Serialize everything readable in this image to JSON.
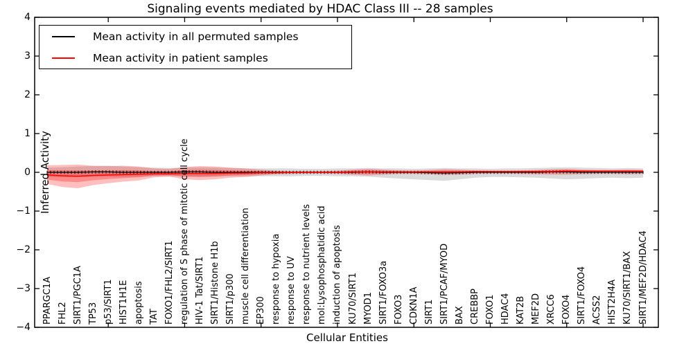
{
  "title": "Signaling events mediated by HDAC Class III -- 28 samples",
  "axes": {
    "xlabel": "Cellular Entities",
    "ylabel": "Inferred Activity",
    "yticks": [
      {
        "value": 4,
        "label": "4"
      },
      {
        "value": 3,
        "label": "3"
      },
      {
        "value": 2,
        "label": "2"
      },
      {
        "value": 1,
        "label": "1"
      },
      {
        "value": 0,
        "label": "0"
      },
      {
        "value": -1,
        "label": "−1"
      },
      {
        "value": -2,
        "label": "−2"
      },
      {
        "value": -3,
        "label": "−3"
      },
      {
        "value": -4,
        "label": "−4"
      }
    ]
  },
  "legend": {
    "items": [
      {
        "label": "Mean activity in all permuted samples",
        "color": "#000000"
      },
      {
        "label": "Mean activity in patient samples",
        "color": "#ff0000"
      }
    ]
  },
  "chart_data": {
    "type": "line",
    "title": "Signaling events mediated by HDAC Class III -- 28 samples",
    "xlabel": "Cellular Entities",
    "ylabel": "Inferred Activity",
    "ylim": [
      -4,
      4
    ],
    "grid": false,
    "legend_position": "upper left",
    "xtick_label_rotation": 90,
    "xtick_mark_every": 5,
    "categories": [
      "PPARGC1A",
      "FHL2",
      "SIRT1/PGC1A",
      "TP53",
      "p53/SIRT1",
      "HIST1H1E",
      "apoptosis",
      "TAT",
      "FOXO1/FHL2/SIRT1",
      "regulation of S phase of mitotic cell cycle",
      "HIV-1 Tat/SIRT1",
      "SIRT1/Histone H1b",
      "SIRT1/p300",
      "muscle cell differentiation",
      "EP300",
      "response to hypoxia",
      "response to UV",
      "response to nutrient levels",
      "mol:Lysophosphatidic acid",
      "induction of apoptosis",
      "KU70/SIRT1",
      "MYOD1",
      "SIRT1/FOXO3a",
      "FOXO3",
      "CDKN1A",
      "SIRT1",
      "SIRT1/PCAF/MYOD",
      "BAX",
      "CREBBP",
      "FOXO1",
      "HDAC4",
      "KAT2B",
      "MEF2D",
      "XRCC6",
      "FOXO4",
      "SIRT1/FOXO4",
      "ACSS2",
      "HIST2H4A",
      "KU70/SIRT1/BAX",
      "SIRT1/MEF2D/HDAC4"
    ],
    "series": [
      {
        "name": "Mean activity in all permuted samples",
        "color": "#000000",
        "values": [
          0,
          0,
          0,
          0.01,
          0.01,
          0,
          0,
          0,
          0,
          0.01,
          0.01,
          0,
          0,
          0,
          0,
          0,
          0,
          0,
          0,
          0,
          0,
          0.01,
          0,
          0,
          0,
          -0.01,
          -0.02,
          -0.01,
          0,
          0,
          0,
          0,
          0,
          0.01,
          0.01,
          0,
          0,
          0,
          0,
          0
        ]
      },
      {
        "name": "Mean activity in patient samples",
        "color": "#ff0000",
        "values": [
          -0.07,
          -0.09,
          -0.1,
          -0.08,
          -0.07,
          -0.06,
          -0.05,
          -0.04,
          -0.04,
          -0.03,
          -0.03,
          -0.03,
          -0.02,
          -0.02,
          -0.01,
          -0.01,
          0,
          0,
          0,
          0,
          0.01,
          0.01,
          0.01,
          0.01,
          0.01,
          0.01,
          0.01,
          0.01,
          0.02,
          0.02,
          0.02,
          0.02,
          0.02,
          0.02,
          0.03,
          0.03,
          0.03,
          0.03,
          0.03,
          0.03
        ]
      }
    ],
    "bands": [
      {
        "name": "permuted-samples-range",
        "color": "#999999",
        "opacity": 0.35,
        "upper": [
          0.12,
          0.13,
          0.15,
          0.16,
          0.17,
          0.15,
          0.13,
          0.12,
          0.11,
          0.12,
          0.13,
          0.12,
          0.11,
          0.1,
          0.1,
          0.1,
          0.1,
          0.09,
          0.09,
          0.1,
          0.1,
          0.11,
          0.1,
          0.1,
          0.09,
          0.1,
          0.11,
          0.1,
          0.1,
          0.09,
          0.1,
          0.1,
          0.11,
          0.12,
          0.13,
          0.12,
          0.11,
          0.1,
          0.11,
          0.1
        ],
        "lower": [
          -0.12,
          -0.13,
          -0.13,
          -0.12,
          -0.11,
          -0.12,
          -0.11,
          -0.1,
          -0.1,
          -0.11,
          -0.12,
          -0.11,
          -0.1,
          -0.1,
          -0.1,
          -0.1,
          -0.1,
          -0.09,
          -0.09,
          -0.1,
          -0.1,
          -0.11,
          -0.14,
          -0.16,
          -0.18,
          -0.2,
          -0.22,
          -0.18,
          -0.14,
          -0.12,
          -0.12,
          -0.13,
          -0.14,
          -0.16,
          -0.18,
          -0.17,
          -0.15,
          -0.14,
          -0.15,
          -0.14
        ]
      },
      {
        "name": "patient-samples-outer-range",
        "color": "#ff0000",
        "opacity": 0.25,
        "upper": [
          0.18,
          0.19,
          0.2,
          0.17,
          0.16,
          0.17,
          0.15,
          0.1,
          0.09,
          0.14,
          0.16,
          0.15,
          0.12,
          0.1,
          0.07,
          0.04,
          0.03,
          0.03,
          0.03,
          0.04,
          0.07,
          0.09,
          0.07,
          0.05,
          0.04,
          0.06,
          0.08,
          0.07,
          0.05,
          0.04,
          0.04,
          0.05,
          0.06,
          0.08,
          0.09,
          0.07,
          0.06,
          0.06,
          0.07,
          0.06
        ],
        "lower": [
          -0.3,
          -0.38,
          -0.41,
          -0.33,
          -0.28,
          -0.24,
          -0.21,
          -0.13,
          -0.11,
          -0.18,
          -0.2,
          -0.18,
          -0.14,
          -0.12,
          -0.08,
          -0.05,
          -0.04,
          -0.03,
          -0.03,
          -0.04,
          -0.06,
          -0.08,
          -0.06,
          -0.04,
          -0.04,
          -0.05,
          -0.07,
          -0.06,
          -0.04,
          -0.03,
          -0.03,
          -0.04,
          -0.05,
          -0.06,
          -0.06,
          -0.05,
          -0.04,
          -0.04,
          -0.05,
          -0.04
        ]
      },
      {
        "name": "patient-samples-inner-range",
        "color": "#ff0000",
        "opacity": 0.28,
        "upper": [
          0.055,
          0.05,
          0.05,
          0.045,
          0.045,
          0.055,
          0.05,
          0.03,
          0.025,
          0.055,
          0.065,
          0.06,
          0.05,
          0.04,
          0.03,
          0.015,
          0.015,
          0.015,
          0.015,
          0.02,
          0.04,
          0.05,
          0.04,
          0.03,
          0.025,
          0.035,
          0.045,
          0.04,
          0.035,
          0.03,
          0.03,
          0.035,
          0.04,
          0.05,
          0.06,
          0.05,
          0.045,
          0.045,
          0.05,
          0.045
        ],
        "lower": [
          -0.185,
          -0.235,
          -0.255,
          -0.205,
          -0.175,
          -0.15,
          -0.13,
          -0.085,
          -0.075,
          -0.105,
          -0.115,
          -0.105,
          -0.08,
          -0.07,
          -0.045,
          -0.03,
          -0.02,
          -0.015,
          -0.015,
          -0.02,
          -0.025,
          -0.035,
          -0.025,
          -0.015,
          -0.015,
          -0.02,
          -0.03,
          -0.025,
          -0.01,
          -0.005,
          -0.005,
          -0.01,
          -0.015,
          -0.02,
          -0.015,
          -0.01,
          -0.005,
          -0.005,
          -0.01,
          -0.005
        ]
      }
    ]
  }
}
